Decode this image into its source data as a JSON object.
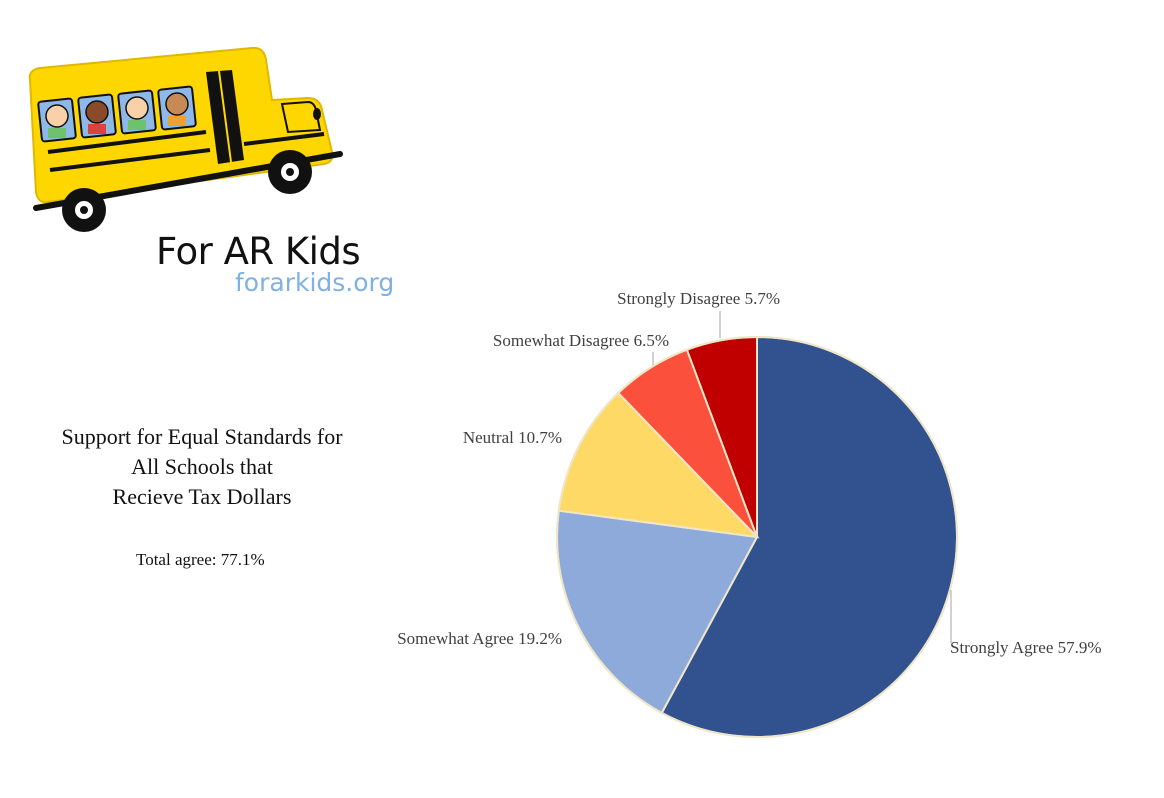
{
  "logo": {
    "title": "For AR Kids",
    "url": "forarkids.org"
  },
  "heading": {
    "lines": [
      "Support for Equal Standards for",
      "All Schools that",
      "Recieve Tax Dollars"
    ]
  },
  "summary": {
    "text": "Total agree: 77.1%"
  },
  "colors": {
    "strongly_agree": "#32528f",
    "somewhat_agree": "#8eaadb",
    "neutral": "#ffd966",
    "somewhat_disagree": "#fa503c",
    "strongly_disagree": "#c00000",
    "bus_yellow": "#ffd700"
  },
  "chart_data": {
    "type": "pie",
    "title": "",
    "slices": [
      {
        "label": "Strongly Agree",
        "value": 57.9,
        "display": "Strongly Agree 57.9%",
        "color": "#32528f"
      },
      {
        "label": "Somewhat Agree",
        "value": 19.2,
        "display": "Somewhat Agree 19.2%",
        "color": "#8eaadb"
      },
      {
        "label": "Neutral",
        "value": 10.7,
        "display": "Neutral 10.7%",
        "color": "#ffd966"
      },
      {
        "label": "Somewhat Disagree",
        "value": 6.5,
        "display": "Somewhat Disagree 6.5%",
        "color": "#fa503c"
      },
      {
        "label": "Strongly Disagree",
        "value": 5.7,
        "display": "Strongly Disagree 5.7%",
        "color": "#c00000"
      }
    ],
    "start_angle": "12 o'clock",
    "direction": "clockwise",
    "legend": "none"
  }
}
